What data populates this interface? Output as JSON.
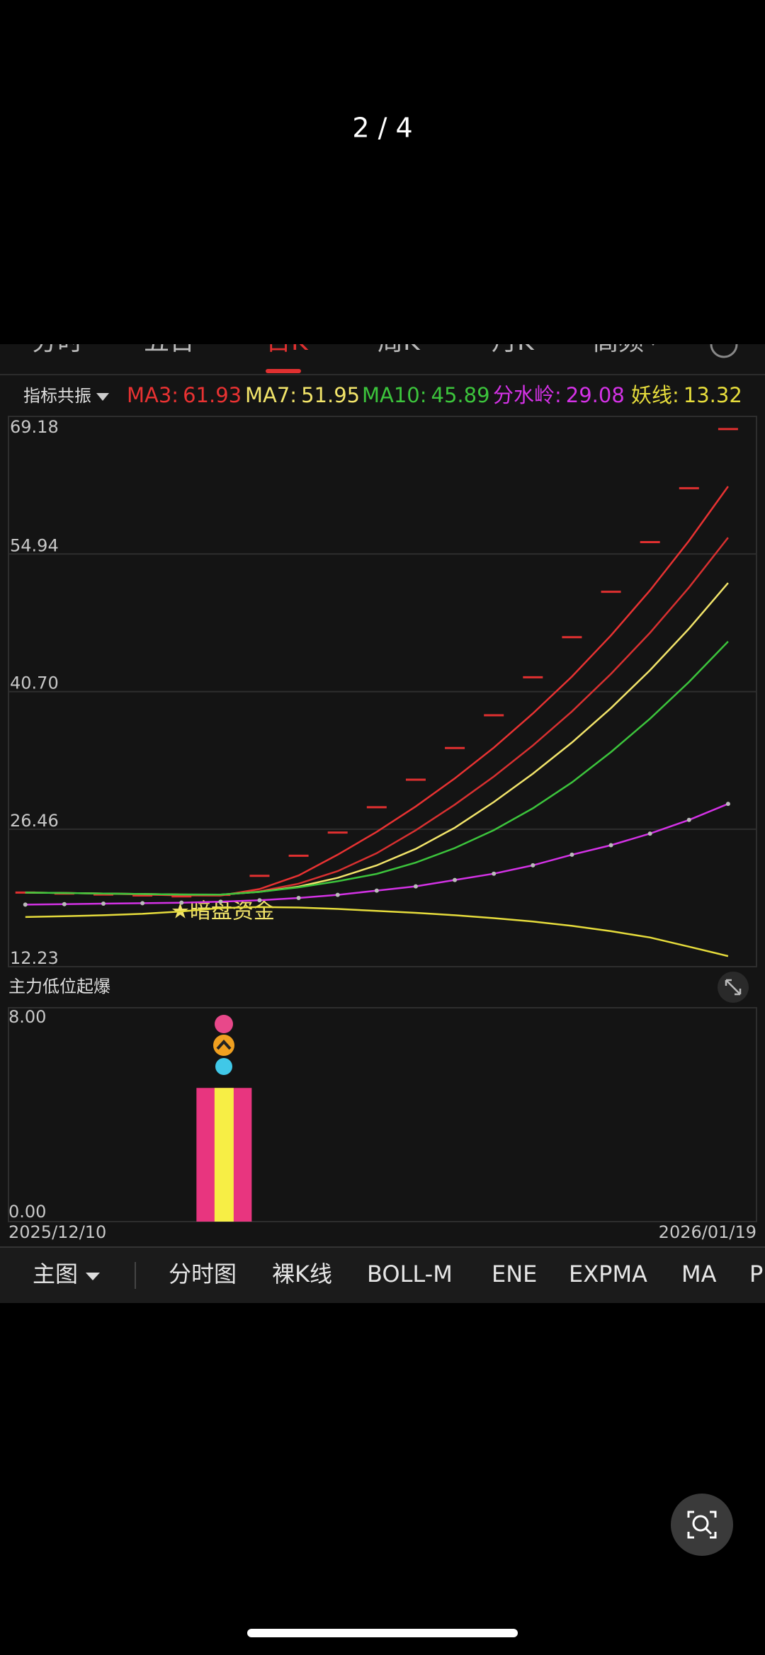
{
  "pager": "2 / 4",
  "tabs": [
    "分时",
    "五日",
    "日K",
    "周K",
    "月K",
    "高频"
  ],
  "active_tab": 2,
  "indicator_selector": "指标共振",
  "annotation": "★暗盘资金",
  "toolbar": [
    "主图",
    "分时图",
    "裸K线",
    "BOLL-M",
    "ENE",
    "EXPMA",
    "MA",
    "P"
  ],
  "chart_data": [
    {
      "type": "line",
      "ylim": [
        12.23,
        69.18
      ],
      "yticks": [
        12.23,
        26.46,
        {
          "value": 40.7,
          "label": "40.70"
        },
        54.94,
        69.18
      ],
      "grid": true,
      "series": [
        {
          "color": "#e03030",
          "style": "dash",
          "values": [
            19.9,
            19.8,
            19.7,
            19.6,
            19.5,
            19.66,
            21.63,
            23.71,
            26.11,
            28.73,
            31.58,
            34.86,
            38.25,
            42.18,
            46.33,
            51.03,
            56.17,
            61.75,
            67.87
          ]
        },
        {
          "name": "MA3:",
          "legend_value": 61.93,
          "color": "#e83232",
          "values": [
            19.9,
            19.85,
            19.8,
            19.7,
            19.6,
            19.59,
            20.26,
            21.67,
            23.82,
            26.18,
            28.81,
            31.72,
            34.9,
            38.43,
            42.25,
            46.51,
            51.18,
            56.32,
            61.93
          ]
        },
        {
          "color": "#d83030",
          "values": [
            19.9,
            19.85,
            19.8,
            19.75,
            19.7,
            19.65,
            20.02,
            20.82,
            22.12,
            23.97,
            26.35,
            29.0,
            31.91,
            35.12,
            38.64,
            42.53,
            46.79,
            51.49,
            56.63
          ]
        },
        {
          "name": "MA7:",
          "legend_value": 51.95,
          "color": "#f2e46a",
          "values": [
            19.9,
            19.85,
            19.8,
            19.75,
            19.7,
            19.69,
            19.97,
            20.51,
            21.42,
            22.71,
            24.42,
            26.61,
            29.27,
            32.2,
            35.43,
            38.99,
            42.91,
            47.22,
            51.94
          ]
        },
        {
          "name": "MA10:",
          "legend_value": 45.89,
          "color": "#3cc43c",
          "values": [
            19.9,
            19.85,
            19.8,
            19.75,
            19.7,
            19.69,
            19.97,
            20.44,
            21.07,
            21.83,
            23.0,
            24.51,
            26.36,
            28.62,
            31.3,
            34.44,
            37.9,
            41.7,
            45.88
          ]
        },
        {
          "name": "分水岭:",
          "legend_value": 29.08,
          "color": "#d432e6",
          "dots": true,
          "values": [
            18.65,
            18.7,
            18.75,
            18.8,
            18.85,
            18.95,
            19.1,
            19.34,
            19.66,
            20.1,
            20.54,
            21.2,
            21.85,
            22.72,
            23.82,
            24.8,
            26.0,
            27.42,
            29.08
          ]
        },
        {
          "name": "妖线:",
          "legend_value": 13.32,
          "color": "#e6dc3c",
          "values": [
            17.37,
            17.45,
            17.55,
            17.7,
            17.95,
            18.3,
            18.4,
            18.35,
            18.2,
            18.0,
            17.8,
            17.55,
            17.25,
            16.9,
            16.45,
            15.9,
            15.25,
            14.3,
            13.32
          ]
        }
      ]
    },
    {
      "type": "bar",
      "title": "主力低位起爆",
      "categories": [
        "2025/12/10",
        null,
        null,
        null,
        null,
        null,
        null,
        null,
        null,
        null,
        null,
        null,
        null,
        null,
        null,
        null,
        null,
        null,
        "2026/01/19"
      ],
      "ylim": [
        0,
        8
      ],
      "yticks": [
        {
          "value": 0,
          "label": "0.00"
        },
        {
          "value": 8,
          "label": "8.00"
        }
      ],
      "grid": true,
      "series": [
        {
          "color": "#e8357f",
          "values": [
            null,
            null,
            null,
            null,
            null,
            5,
            null,
            null,
            null,
            null,
            null,
            null,
            null,
            null,
            null,
            null,
            null,
            null,
            null
          ]
        },
        {
          "color": "#f7ee45",
          "values": [
            null,
            null,
            null,
            null,
            null,
            5,
            null,
            null,
            null,
            null,
            null,
            null,
            null,
            null,
            null,
            null,
            null,
            null,
            null
          ]
        }
      ]
    }
  ]
}
